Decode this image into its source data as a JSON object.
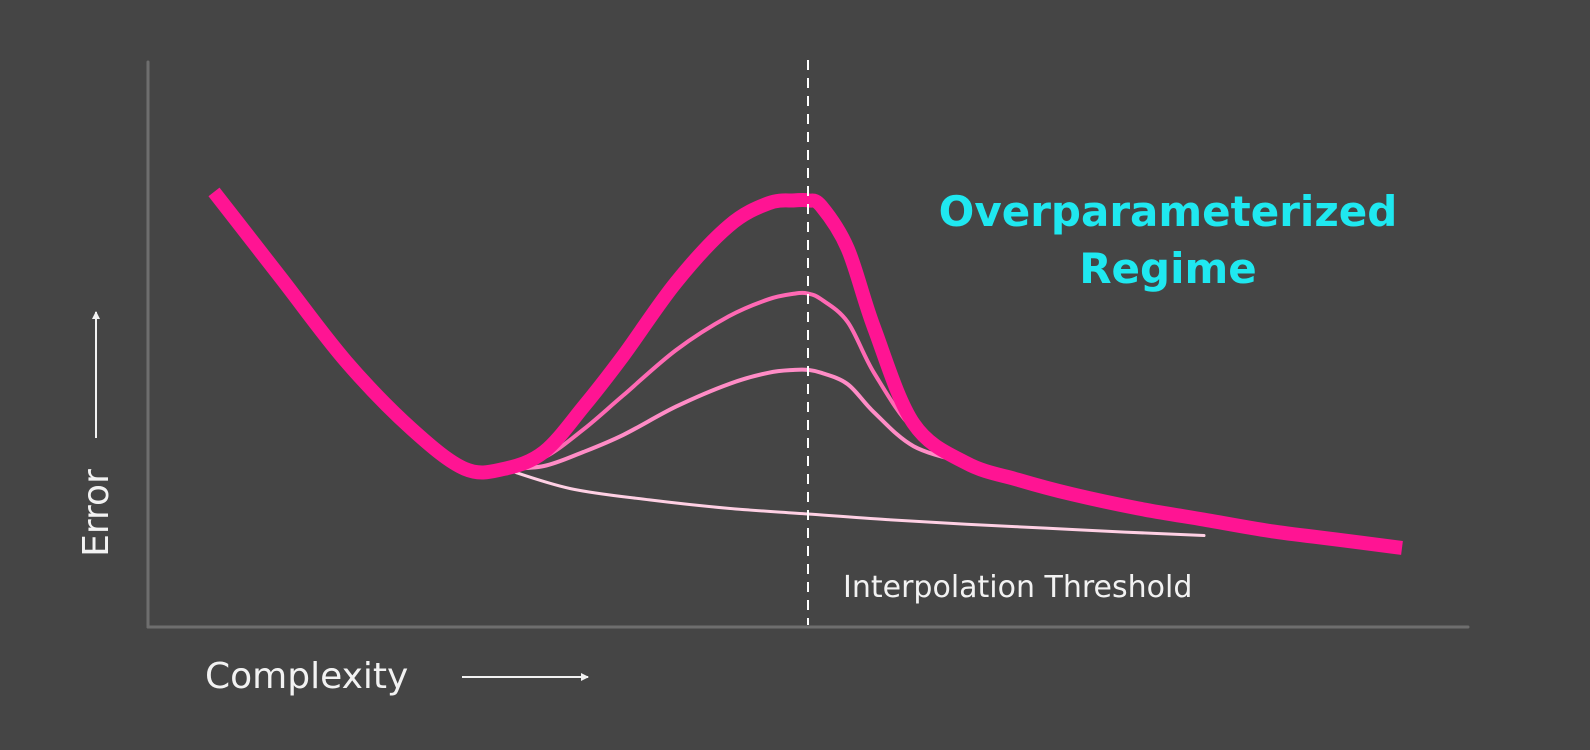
{
  "chart_data": {
    "type": "line",
    "title": "",
    "xlabel": "Complexity",
    "ylabel": "Error",
    "x_range": [
      0,
      10
    ],
    "y_range": [
      0,
      10
    ],
    "grid": false,
    "axis_color": "#6e6e6e",
    "threshold": {
      "x": 5.0,
      "label": "Interpolation Threshold",
      "color": "#ffffff"
    },
    "annotation": {
      "lines": [
        "Overparameterized",
        "Regime"
      ],
      "color": "#1fe8f0"
    },
    "series": [
      {
        "color": "#ff1493",
        "emphasis": "main",
        "x": [
          0.5,
          1.0,
          1.5,
          2.0,
          2.4,
          2.7,
          3.0,
          3.3,
          3.6,
          4.0,
          4.4,
          4.7,
          4.9,
          5.0,
          5.1,
          5.3,
          5.5,
          5.8,
          6.2,
          6.6,
          7.0,
          7.5,
          8.0,
          8.5,
          9.0,
          9.5
        ],
        "y": [
          7.7,
          6.2,
          4.7,
          3.5,
          2.8,
          2.8,
          3.1,
          3.9,
          4.8,
          6.1,
          7.1,
          7.5,
          7.55,
          7.55,
          7.45,
          6.7,
          5.3,
          3.6,
          2.9,
          2.6,
          2.35,
          2.1,
          1.9,
          1.7,
          1.55,
          1.4
        ]
      },
      {
        "color": "#ff69b4",
        "emphasis": "medium",
        "x": [
          2.7,
          3.0,
          3.3,
          3.6,
          4.0,
          4.4,
          4.7,
          4.9,
          5.0,
          5.1,
          5.3,
          5.5,
          5.8,
          6.2
        ],
        "y": [
          2.8,
          3.0,
          3.5,
          4.1,
          4.9,
          5.5,
          5.8,
          5.9,
          5.9,
          5.8,
          5.4,
          4.5,
          3.5,
          2.9
        ]
      },
      {
        "color": "#ff8cc6",
        "emphasis": "light",
        "x": [
          2.7,
          3.0,
          3.3,
          3.6,
          4.0,
          4.4,
          4.7,
          4.9,
          5.0,
          5.1,
          5.3,
          5.5,
          5.8,
          6.2
        ],
        "y": [
          2.8,
          2.85,
          3.1,
          3.4,
          3.9,
          4.3,
          4.5,
          4.55,
          4.55,
          4.5,
          4.3,
          3.8,
          3.2,
          2.9
        ]
      },
      {
        "color": "#ffd0e4",
        "emphasis": "faint",
        "x": [
          2.7,
          3.2,
          3.8,
          4.4,
          5.0,
          5.6,
          6.2,
          6.8,
          7.4,
          8.0
        ],
        "y": [
          2.8,
          2.45,
          2.25,
          2.1,
          2.0,
          1.9,
          1.82,
          1.75,
          1.68,
          1.62
        ]
      }
    ]
  }
}
